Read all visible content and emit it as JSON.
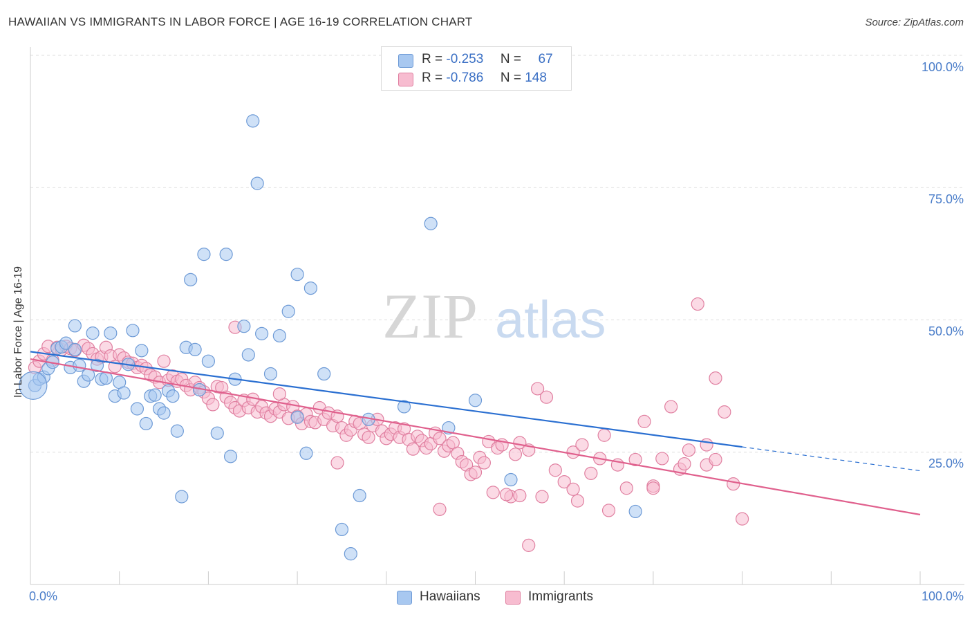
{
  "title": "HAWAIIAN VS IMMIGRANTS IN LABOR FORCE | AGE 16-19 CORRELATION CHART",
  "source": "Source: ZipAtlas.com",
  "watermark": {
    "zip": "ZIP",
    "atlas": "atlas"
  },
  "legend": {
    "rows": [
      {
        "r_label": "R =",
        "r_value": "-0.253",
        "n_label": "N =",
        "n_value": "67",
        "color": "#a8c8f0",
        "border": "#6d9ad6"
      },
      {
        "r_label": "R =",
        "r_value": "-0.786",
        "n_label": "N =",
        "n_value": "148",
        "color": "#f7bcd0",
        "border": "#e07fa0"
      }
    ]
  },
  "bottom_legend": {
    "hawaiians": "Hawaiians",
    "immigrants": "Immigrants"
  },
  "colors": {
    "hawaiians_fill": "#a8c8f0",
    "hawaiians_stroke": "#6d9ad6",
    "hawaiians_line": "#2a6fd1",
    "immigrants_fill": "#f7bcd0",
    "immigrants_stroke": "#e07fa0",
    "immigrants_line": "#e0608d",
    "tick_text": "#4a7dc9",
    "grid": "#dddddd"
  },
  "chart_data": {
    "type": "scatter",
    "xlabel": "",
    "ylabel": "In Labor Force | Age 16-19",
    "xlim": [
      0,
      100
    ],
    "ylim": [
      0,
      100
    ],
    "x_tick_labels": {
      "min": "0.0%",
      "max": "100.0%"
    },
    "y_tick_labels": [
      "100.0%",
      "75.0%",
      "50.0%",
      "25.0%"
    ],
    "y_tick_values": [
      100,
      75,
      50,
      25
    ],
    "grid": "dashed horizontal",
    "legend_placement": "top-center",
    "series": [
      {
        "name": "Hawaiians",
        "trend": {
          "x0": 0,
          "y0": 44.0,
          "x1": 80,
          "y1": 26.0,
          "dashed_to": 100,
          "dashed_y": 21.5
        },
        "points": [
          [
            0.5,
            37.6
          ],
          [
            1,
            38.8
          ],
          [
            1.5,
            39.2
          ],
          [
            2,
            40.8
          ],
          [
            2.5,
            42
          ],
          [
            3,
            44.6
          ],
          [
            3.5,
            44.9
          ],
          [
            4,
            45.6
          ],
          [
            4.5,
            41
          ],
          [
            5,
            48.9
          ],
          [
            5,
            44.4
          ],
          [
            5.5,
            41.4
          ],
          [
            6,
            38.4
          ],
          [
            6.5,
            39.6
          ],
          [
            7,
            47.5
          ],
          [
            7.5,
            41.4
          ],
          [
            8,
            38.8
          ],
          [
            8.5,
            39
          ],
          [
            9,
            47.5
          ],
          [
            9.5,
            35.6
          ],
          [
            10,
            38.2
          ],
          [
            10.5,
            36.2
          ],
          [
            11,
            41.6
          ],
          [
            11.5,
            48
          ],
          [
            12,
            33.2
          ],
          [
            12.5,
            44.2
          ],
          [
            13,
            30.4
          ],
          [
            13.5,
            35.6
          ],
          [
            14,
            35.8
          ],
          [
            14.5,
            33.2
          ],
          [
            15,
            32.4
          ],
          [
            15.5,
            36.6
          ],
          [
            16,
            35.6
          ],
          [
            16.5,
            29
          ],
          [
            17,
            16.6
          ],
          [
            17.5,
            44.8
          ],
          [
            18,
            57.6
          ],
          [
            18.5,
            44.4
          ],
          [
            19,
            36.8
          ],
          [
            19.5,
            62.4
          ],
          [
            20,
            42.2
          ],
          [
            21,
            28.6
          ],
          [
            22,
            62.4
          ],
          [
            22.5,
            24.2
          ],
          [
            23,
            38.8
          ],
          [
            24,
            48.8
          ],
          [
            24.5,
            43.4
          ],
          [
            25,
            87.6
          ],
          [
            25.5,
            75.8
          ],
          [
            26,
            47.4
          ],
          [
            27,
            39.8
          ],
          [
            28,
            47
          ],
          [
            29,
            51.6
          ],
          [
            30,
            58.6
          ],
          [
            30,
            31.6
          ],
          [
            31,
            24.8
          ],
          [
            31.5,
            56.0
          ],
          [
            33,
            39.8
          ],
          [
            35,
            10.4
          ],
          [
            36,
            5.8
          ],
          [
            37,
            16.8
          ],
          [
            38,
            31.2
          ],
          [
            42,
            33.6
          ],
          [
            45,
            68.2
          ],
          [
            47,
            29.6
          ],
          [
            50,
            34.8
          ],
          [
            54,
            19.8
          ],
          [
            68,
            13.8
          ]
        ]
      },
      {
        "name": "Immigrants",
        "trend": {
          "x0": 0,
          "y0": 42.6,
          "x1": 100,
          "y1": 13.2
        },
        "points": [
          [
            0.5,
            41
          ],
          [
            1,
            42.2
          ],
          [
            1.5,
            43.6
          ],
          [
            2,
            45
          ],
          [
            2.5,
            42.4
          ],
          [
            3,
            44.8
          ],
          [
            3.5,
            44.4
          ],
          [
            4,
            45
          ],
          [
            4.5,
            44.6
          ],
          [
            5,
            44.2
          ],
          [
            6,
            45.2
          ],
          [
            6.5,
            44.6
          ],
          [
            7,
            43.6
          ],
          [
            7.5,
            42.6
          ],
          [
            8,
            43
          ],
          [
            8.5,
            44.8
          ],
          [
            9,
            43.2
          ],
          [
            9.5,
            41.2
          ],
          [
            10,
            43.4
          ],
          [
            10.5,
            42.8
          ],
          [
            11,
            42
          ],
          [
            11.5,
            41.8
          ],
          [
            12,
            41
          ],
          [
            12.5,
            41.4
          ],
          [
            13,
            40.8
          ],
          [
            13.5,
            39.6
          ],
          [
            14,
            39.2
          ],
          [
            14.5,
            38.2
          ],
          [
            15,
            42.2
          ],
          [
            15.5,
            38.6
          ],
          [
            16,
            39.4
          ],
          [
            16.5,
            38.4
          ],
          [
            17,
            38.8
          ],
          [
            17.5,
            37.6
          ],
          [
            18,
            36.8
          ],
          [
            18.5,
            38.2
          ],
          [
            19,
            37.2
          ],
          [
            19.5,
            36.4
          ],
          [
            20,
            35.2
          ],
          [
            20.5,
            34
          ],
          [
            21,
            37.4
          ],
          [
            21.5,
            37.2
          ],
          [
            22,
            35.4
          ],
          [
            22.5,
            34.4
          ],
          [
            23,
            33.4
          ],
          [
            23.5,
            32.8
          ],
          [
            24,
            34.8
          ],
          [
            24.5,
            33.4
          ],
          [
            25,
            35
          ],
          [
            25.5,
            32.6
          ],
          [
            26,
            33.6
          ],
          [
            26.5,
            32.4
          ],
          [
            27,
            31.8
          ],
          [
            27.5,
            33.2
          ],
          [
            28,
            32.6
          ],
          [
            28.5,
            34
          ],
          [
            29,
            31.4
          ],
          [
            29.5,
            33.6
          ],
          [
            30,
            31.8
          ],
          [
            30.5,
            30.4
          ],
          [
            31,
            32.2
          ],
          [
            31.5,
            30.8
          ],
          [
            32,
            30.6
          ],
          [
            32.5,
            33.4
          ],
          [
            33,
            31.2
          ],
          [
            33.5,
            32.4
          ],
          [
            34,
            30
          ],
          [
            34.5,
            31.8
          ],
          [
            35,
            29.6
          ],
          [
            35.5,
            28.2
          ],
          [
            36,
            29.2
          ],
          [
            36.5,
            30.8
          ],
          [
            37,
            30.4
          ],
          [
            37.5,
            28.4
          ],
          [
            38,
            27.8
          ],
          [
            38.5,
            30
          ],
          [
            39,
            31.2
          ],
          [
            39.5,
            29
          ],
          [
            40,
            27.6
          ],
          [
            40.5,
            28.4
          ],
          [
            41,
            29.6
          ],
          [
            41.5,
            27.8
          ],
          [
            42,
            29.4
          ],
          [
            42.5,
            27.4
          ],
          [
            43,
            25.6
          ],
          [
            43.5,
            28
          ],
          [
            44,
            27.2
          ],
          [
            44.5,
            25.8
          ],
          [
            45,
            26.6
          ],
          [
            45.5,
            28.6
          ],
          [
            46,
            27.6
          ],
          [
            46.5,
            25.2
          ],
          [
            47,
            26.2
          ],
          [
            47.5,
            26.8
          ],
          [
            48,
            24.8
          ],
          [
            48.5,
            23.2
          ],
          [
            49,
            22.6
          ],
          [
            49.5,
            20.8
          ],
          [
            50,
            21.2
          ],
          [
            50.5,
            24
          ],
          [
            51,
            23
          ],
          [
            51.5,
            27
          ],
          [
            52,
            17.4
          ],
          [
            52.5,
            25.8
          ],
          [
            53,
            26.4
          ],
          [
            54,
            16.6
          ],
          [
            54.5,
            24.6
          ],
          [
            55,
            26.8
          ],
          [
            56,
            25.4
          ],
          [
            57,
            37
          ],
          [
            57.5,
            16.6
          ],
          [
            58,
            35.4
          ],
          [
            59,
            21.6
          ],
          [
            60,
            19.4
          ],
          [
            61,
            25
          ],
          [
            61.5,
            15.8
          ],
          [
            62,
            26.4
          ],
          [
            63,
            21
          ],
          [
            64,
            23.8
          ],
          [
            64.5,
            28.2
          ],
          [
            65,
            14
          ],
          [
            66,
            22.6
          ],
          [
            67,
            18.2
          ],
          [
            68,
            23.6
          ],
          [
            69,
            30.8
          ],
          [
            70,
            18.6
          ],
          [
            71,
            23.8
          ],
          [
            72,
            33.6
          ],
          [
            73,
            21.8
          ],
          [
            74,
            25.4
          ],
          [
            75,
            53
          ],
          [
            76,
            22.6
          ],
          [
            77,
            39
          ],
          [
            78,
            32.6
          ],
          [
            80,
            12.4
          ],
          [
            23,
            48.6
          ],
          [
            28,
            36
          ],
          [
            34.5,
            23
          ],
          [
            46,
            14.2
          ],
          [
            53.5,
            17
          ],
          [
            55,
            16.8
          ],
          [
            56,
            7.4
          ],
          [
            61,
            18
          ],
          [
            70,
            18.2
          ],
          [
            73.5,
            22.8
          ],
          [
            76,
            26.4
          ],
          [
            77,
            23.6
          ],
          [
            79,
            19
          ]
        ]
      }
    ]
  }
}
